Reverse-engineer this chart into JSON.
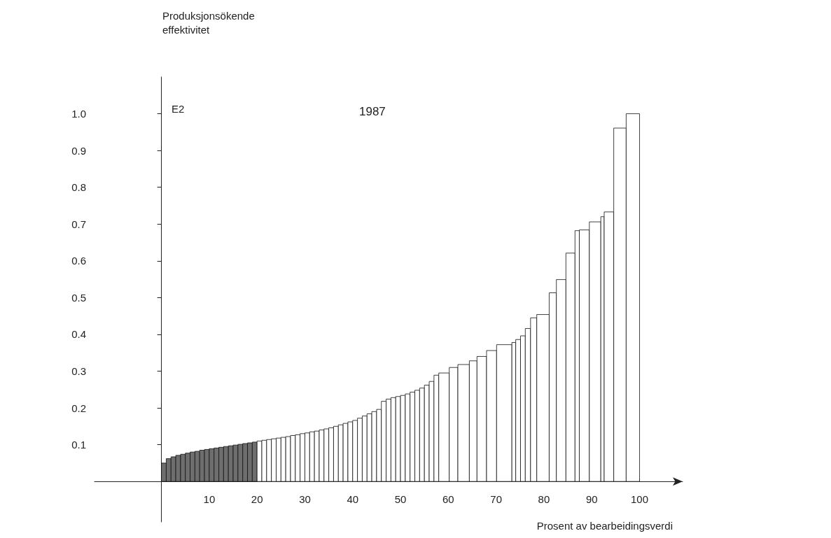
{
  "chart_data": {
    "type": "histogram",
    "title": "1987",
    "ylabel": "Produksjonsökende\neffektivitet",
    "xlabel": "Prosent av bearbeidingsverdi",
    "annotations": [
      "E2"
    ],
    "bins": [
      0,
      1,
      2,
      3,
      4,
      5,
      6,
      7,
      8,
      9,
      10,
      11,
      12,
      13,
      14,
      15,
      16,
      17,
      18,
      19,
      20,
      21,
      22,
      23,
      24,
      25,
      26,
      27,
      28,
      29,
      30,
      31,
      32,
      33,
      34,
      35,
      36,
      37,
      38,
      39,
      40,
      41,
      42,
      43,
      44,
      45,
      46,
      47,
      48,
      49,
      50,
      51,
      52,
      53,
      54,
      55,
      56,
      57,
      58,
      60.2,
      62,
      64.4,
      66,
      68,
      70.1,
      73.3,
      74.1,
      75.1,
      76.1,
      77.2,
      78.5,
      81.1,
      82.6,
      84.6,
      86.5,
      87.4,
      89.5,
      91.9,
      92.6,
      94.6,
      97.2,
      100
    ],
    "values": [
      0.05,
      0.062,
      0.067,
      0.071,
      0.074,
      0.077,
      0.08,
      0.082,
      0.085,
      0.087,
      0.089,
      0.091,
      0.093,
      0.095,
      0.097,
      0.099,
      0.101,
      0.103,
      0.105,
      0.107,
      0.11,
      0.112,
      0.114,
      0.116,
      0.118,
      0.12,
      0.122,
      0.125,
      0.127,
      0.13,
      0.132,
      0.135,
      0.137,
      0.14,
      0.143,
      0.146,
      0.15,
      0.154,
      0.158,
      0.162,
      0.166,
      0.172,
      0.178,
      0.184,
      0.19,
      0.196,
      0.218,
      0.224,
      0.228,
      0.231,
      0.234,
      0.238,
      0.243,
      0.248,
      0.254,
      0.262,
      0.272,
      0.289,
      0.295,
      0.31,
      0.318,
      0.328,
      0.34,
      0.356,
      0.372,
      0.378,
      0.386,
      0.396,
      0.416,
      0.445,
      0.454,
      0.513,
      0.549,
      0.621,
      0.682,
      0.684,
      0.706,
      0.72,
      0.733,
      0.961,
      1.0
    ],
    "colors": [
      "#6e6e6e",
      "#6e6e6e",
      "#6e6e6e",
      "#6e6e6e",
      "#6e6e6e",
      "#6e6e6e",
      "#6e6e6e",
      "#6e6e6e",
      "#6e6e6e",
      "#6e6e6e",
      "#6e6e6e",
      "#6e6e6e",
      "#6e6e6e",
      "#6e6e6e",
      "#6e6e6e",
      "#6e6e6e",
      "#6e6e6e",
      "#6e6e6e",
      "#6e6e6e",
      "#6e6e6e",
      "#ffffff",
      "#ffffff",
      "#ffffff",
      "#ffffff",
      "#ffffff",
      "#ffffff",
      "#ffffff",
      "#ffffff",
      "#ffffff",
      "#ffffff",
      "#ffffff",
      "#ffffff",
      "#ffffff",
      "#ffffff",
      "#ffffff",
      "#ffffff",
      "#ffffff",
      "#ffffff",
      "#ffffff",
      "#ffffff",
      "#ffffff",
      "#ffffff",
      "#ffffff",
      "#ffffff",
      "#ffffff",
      "#ffffff",
      "#ffffff",
      "#ffffff",
      "#ffffff",
      "#ffffff",
      "#ffffff",
      "#ffffff",
      "#ffffff",
      "#ffffff",
      "#ffffff",
      "#ffffff",
      "#ffffff",
      "#ffffff",
      "#ffffff",
      "#ffffff",
      "#ffffff",
      "#ffffff",
      "#ffffff",
      "#ffffff",
      "#ffffff",
      "#ffffff",
      "#ffffff",
      "#ffffff",
      "#ffffff",
      "#ffffff",
      "#ffffff",
      "#ffffff",
      "#ffffff",
      "#ffffff",
      "#ffffff",
      "#ffffff",
      "#ffffff",
      "#ffffff",
      "#ffffff",
      "#ffffff",
      "#ffffff"
    ],
    "xlim": [
      -14,
      109
    ],
    "xticks": [
      10,
      20,
      30,
      40,
      50,
      60,
      70,
      80,
      90,
      100
    ],
    "ylim": [
      -0.11,
      1.1
    ],
    "yticks": [
      0.1,
      0.2,
      0.3,
      0.4,
      0.5,
      0.6,
      0.7,
      0.8,
      0.9,
      {
        "value": 1,
        "label": "1.0"
      }
    ]
  }
}
